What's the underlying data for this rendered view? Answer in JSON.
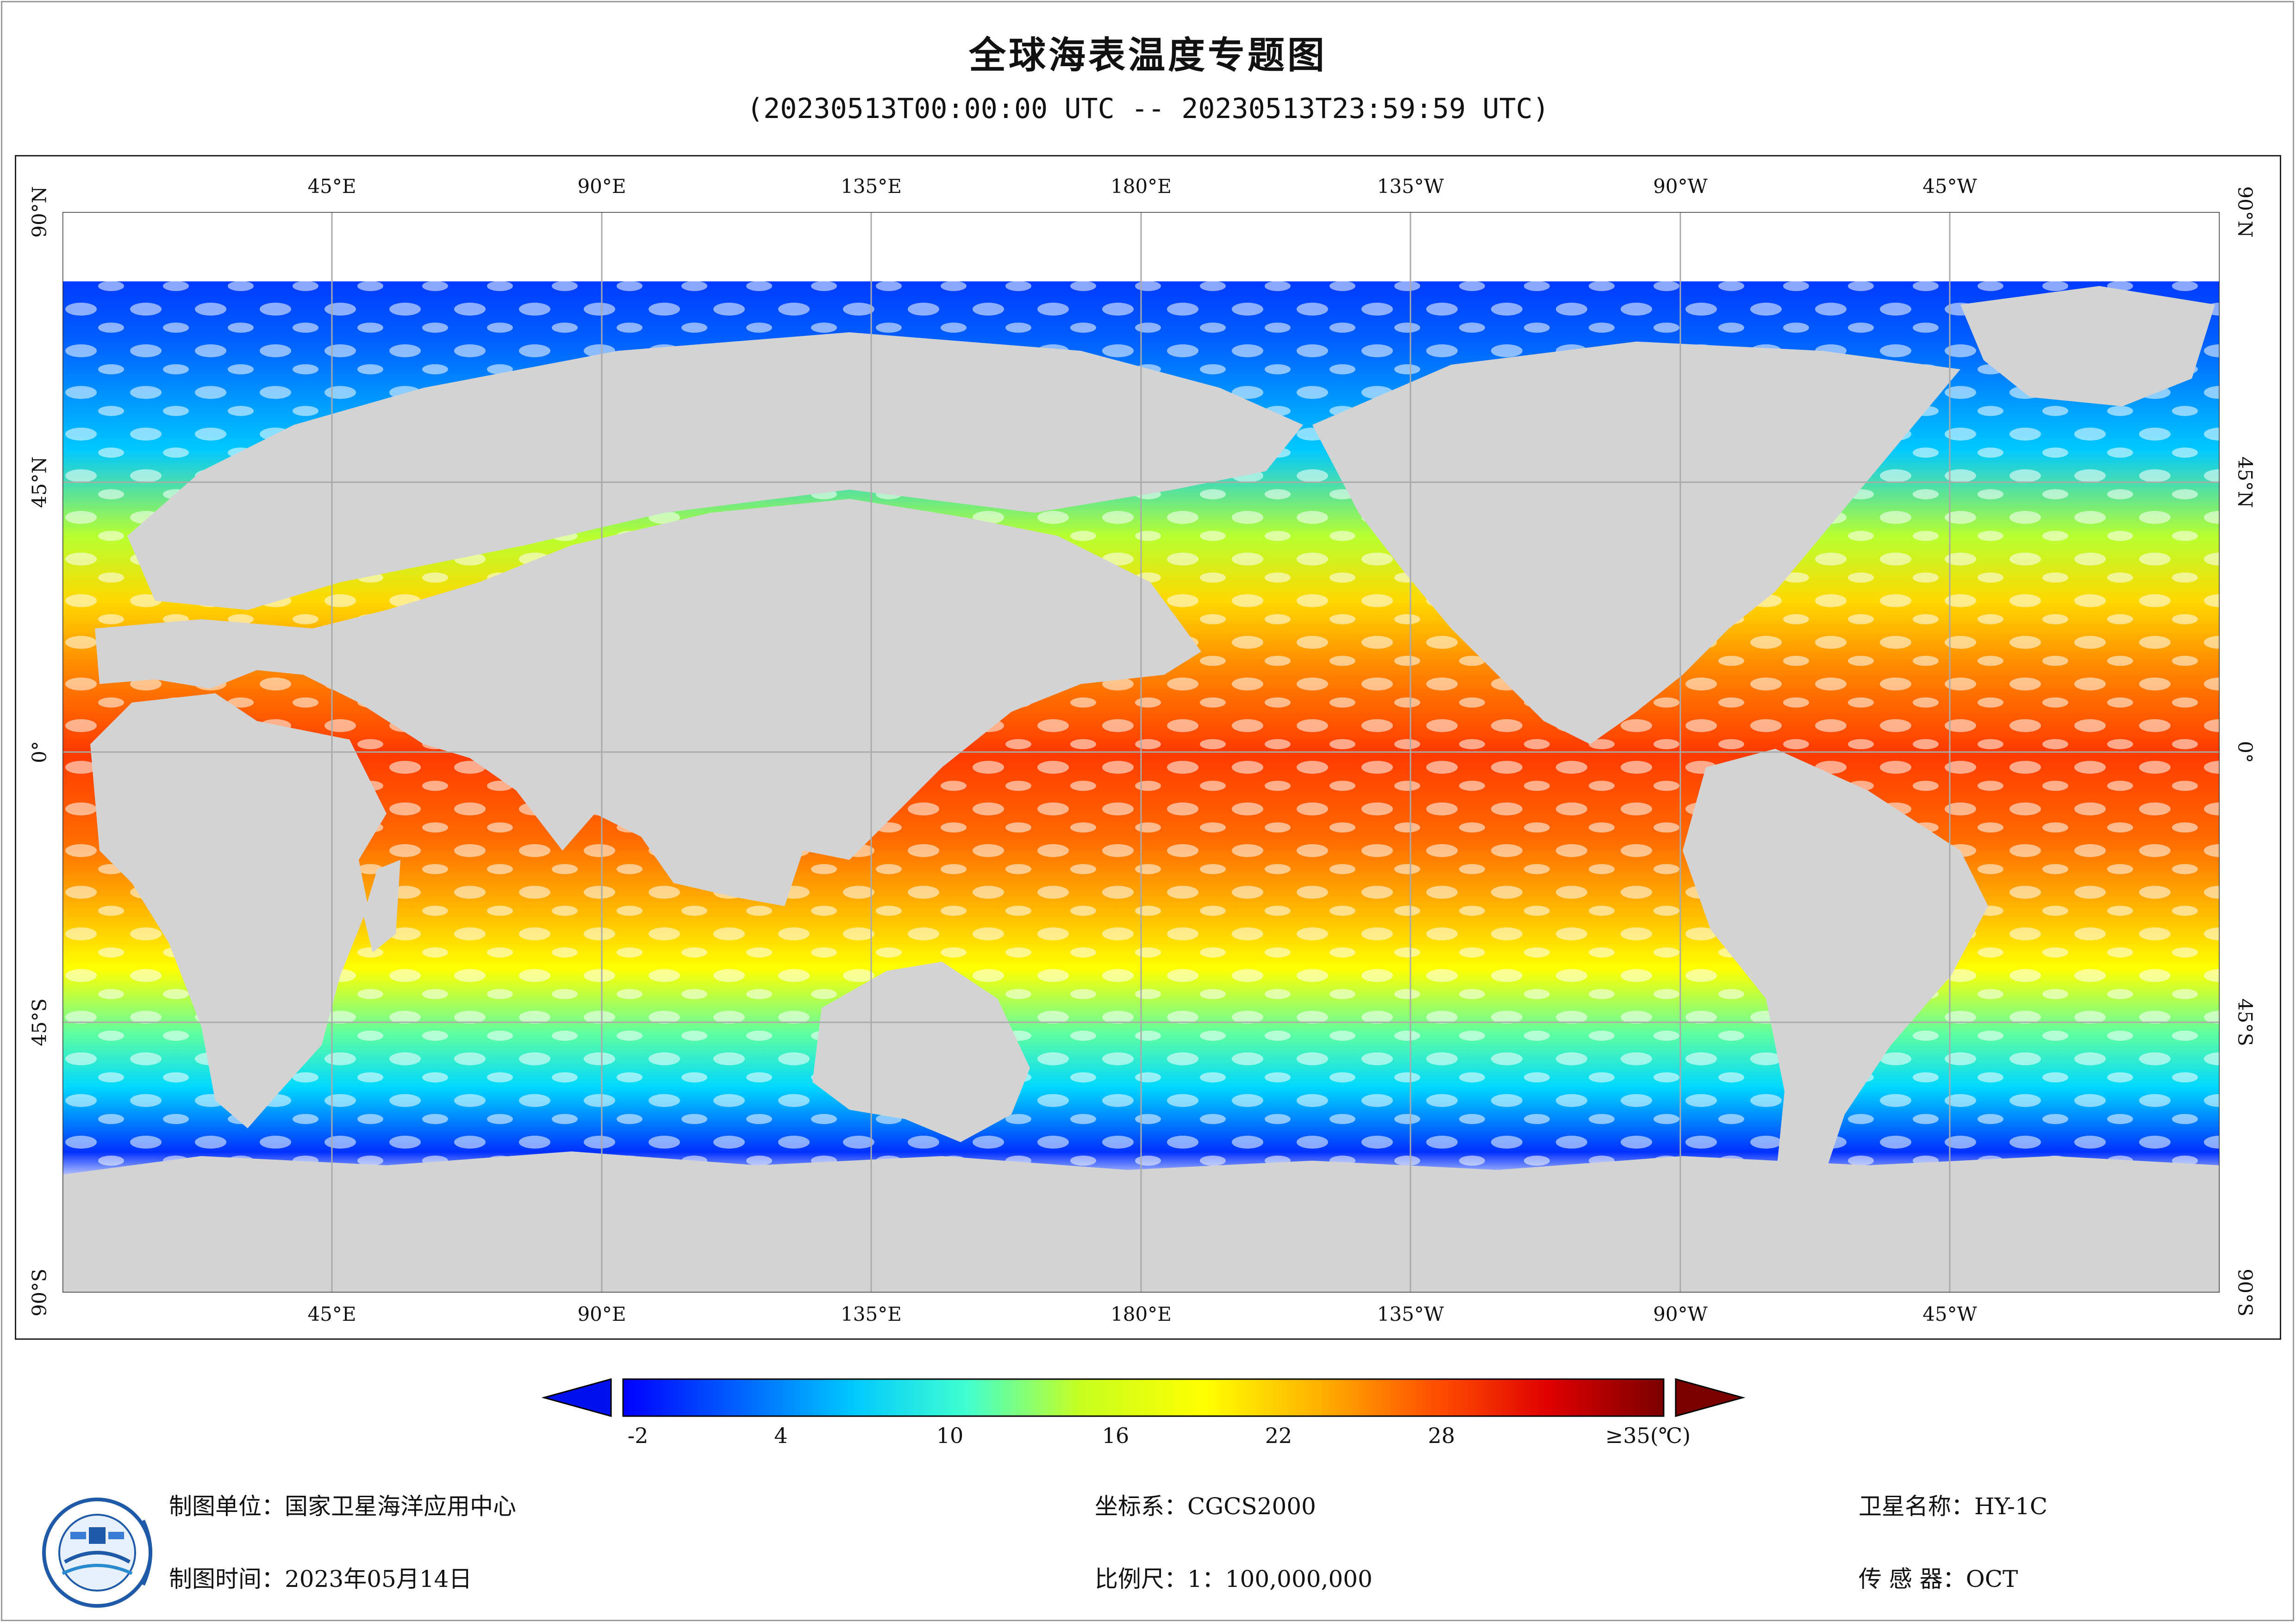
{
  "title": "全球海表温度专题图",
  "subtitle": "(20230513T00:00:00 UTC -- 20230513T23:59:59 UTC)",
  "map": {
    "lon_ticks": [
      "45°E",
      "90°E",
      "135°E",
      "180°E",
      "135°W",
      "90°W",
      "45°W"
    ],
    "lat_ticks": [
      "90°N",
      "45°N",
      "0°",
      "45°S",
      "90°S"
    ],
    "land_color": "#d3d3d3",
    "gridline_color": "#aaaaaa"
  },
  "legend": {
    "labels": [
      "-2",
      "4",
      "10",
      "16",
      "22",
      "28",
      "≥35(℃)"
    ],
    "min": -2,
    "max": 35,
    "colors": [
      "#0000ff",
      "#0060ff",
      "#00c8ff",
      "#40ffd0",
      "#c8ff20",
      "#ffff00",
      "#ffb000",
      "#ff5000",
      "#e00000",
      "#7a0000"
    ]
  },
  "footer": {
    "unit": "制图单位：国家卫星海洋应用中心",
    "time": "制图时间：2023年05月14日",
    "crs": "坐标系：CGCS2000",
    "scale": "比例尺：1：100,000,000",
    "satellite": "卫星名称：HY-1C",
    "sensor": "传 感 器：OCT"
  }
}
